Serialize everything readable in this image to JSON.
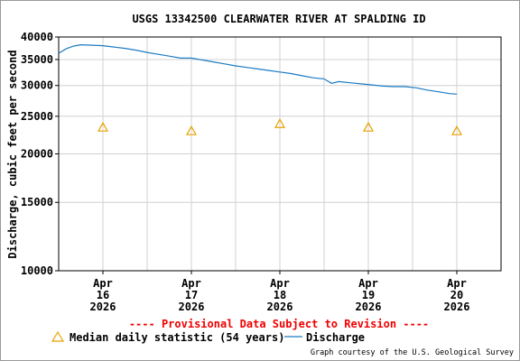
{
  "chart_data": {
    "type": "line",
    "title": "USGS 13342500 CLEARWATER RIVER AT SPALDING ID",
    "ylabel": "Discharge, cubic feet per second",
    "xlabel": "",
    "y_scale": "log",
    "ylim": [
      10000,
      40000
    ],
    "xlim": [
      "2026-04-15T12:00",
      "2026-04-20T12:00"
    ],
    "y_ticks": [
      "10000",
      "15000",
      "20000",
      "25000",
      "30000",
      "35000",
      "40000"
    ],
    "x_ticks": [
      {
        "x": "2026-04-16T00:00",
        "month": "Apr",
        "day": "16",
        "year": "2026"
      },
      {
        "x": "2026-04-17T00:00",
        "month": "Apr",
        "day": "17",
        "year": "2026"
      },
      {
        "x": "2026-04-18T00:00",
        "month": "Apr",
        "day": "18",
        "year": "2026"
      },
      {
        "x": "2026-04-19T00:00",
        "month": "Apr",
        "day": "19",
        "year": "2026"
      },
      {
        "x": "2026-04-20T00:00",
        "month": "Apr",
        "day": "20",
        "year": "2026"
      }
    ],
    "grid": true,
    "series": [
      {
        "name": "Discharge",
        "kind": "line",
        "color": "#1c7bc4",
        "points": [
          [
            "2026-04-15T12:00",
            36300
          ],
          [
            "2026-04-15T14:00",
            37300
          ],
          [
            "2026-04-15T16:00",
            37900
          ],
          [
            "2026-04-15T18:00",
            38200
          ],
          [
            "2026-04-15T21:00",
            38100
          ],
          [
            "2026-04-16T00:00",
            38000
          ],
          [
            "2026-04-16T03:00",
            37700
          ],
          [
            "2026-04-16T06:00",
            37400
          ],
          [
            "2026-04-16T09:00",
            37000
          ],
          [
            "2026-04-16T12:00",
            36500
          ],
          [
            "2026-04-16T15:00",
            36100
          ],
          [
            "2026-04-16T18:00",
            35700
          ],
          [
            "2026-04-16T21:00",
            35300
          ],
          [
            "2026-04-17T00:00",
            35300
          ],
          [
            "2026-04-17T03:00",
            34900
          ],
          [
            "2026-04-17T06:00",
            34500
          ],
          [
            "2026-04-17T09:00",
            34100
          ],
          [
            "2026-04-17T12:00",
            33700
          ],
          [
            "2026-04-17T15:00",
            33400
          ],
          [
            "2026-04-17T18:00",
            33100
          ],
          [
            "2026-04-17T21:00",
            32800
          ],
          [
            "2026-04-18T00:00",
            32500
          ],
          [
            "2026-04-18T03:00",
            32200
          ],
          [
            "2026-04-18T06:00",
            31800
          ],
          [
            "2026-04-18T09:00",
            31400
          ],
          [
            "2026-04-18T12:00",
            31200
          ],
          [
            "2026-04-18T14:00",
            30400
          ],
          [
            "2026-04-18T16:00",
            30700
          ],
          [
            "2026-04-18T19:00",
            30500
          ],
          [
            "2026-04-18T22:00",
            30300
          ],
          [
            "2026-04-19T01:00",
            30100
          ],
          [
            "2026-04-19T04:00",
            29900
          ],
          [
            "2026-04-19T07:00",
            29800
          ],
          [
            "2026-04-19T10:00",
            29800
          ],
          [
            "2026-04-19T13:00",
            29600
          ],
          [
            "2026-04-19T16:00",
            29200
          ],
          [
            "2026-04-19T19:00",
            28900
          ],
          [
            "2026-04-19T22:00",
            28600
          ],
          [
            "2026-04-20T00:00",
            28500
          ]
        ]
      },
      {
        "name": "Median daily statistic (54 years)",
        "kind": "marker",
        "marker": "triangle",
        "color": "#e8a200",
        "points": [
          [
            "2026-04-16T00:00",
            23400
          ],
          [
            "2026-04-17T00:00",
            22900
          ],
          [
            "2026-04-18T00:00",
            23900
          ],
          [
            "2026-04-19T00:00",
            23400
          ],
          [
            "2026-04-20T00:00",
            22900
          ]
        ]
      }
    ],
    "legend_placement": "bottom",
    "notice": "---- Provisional Data Subject to Revision ----",
    "credit": "Graph courtesy of the U.S. Geological Survey"
  },
  "colors": {
    "notice": "#ee0000",
    "grid": "#d0d0d0",
    "axis": "#000000"
  }
}
